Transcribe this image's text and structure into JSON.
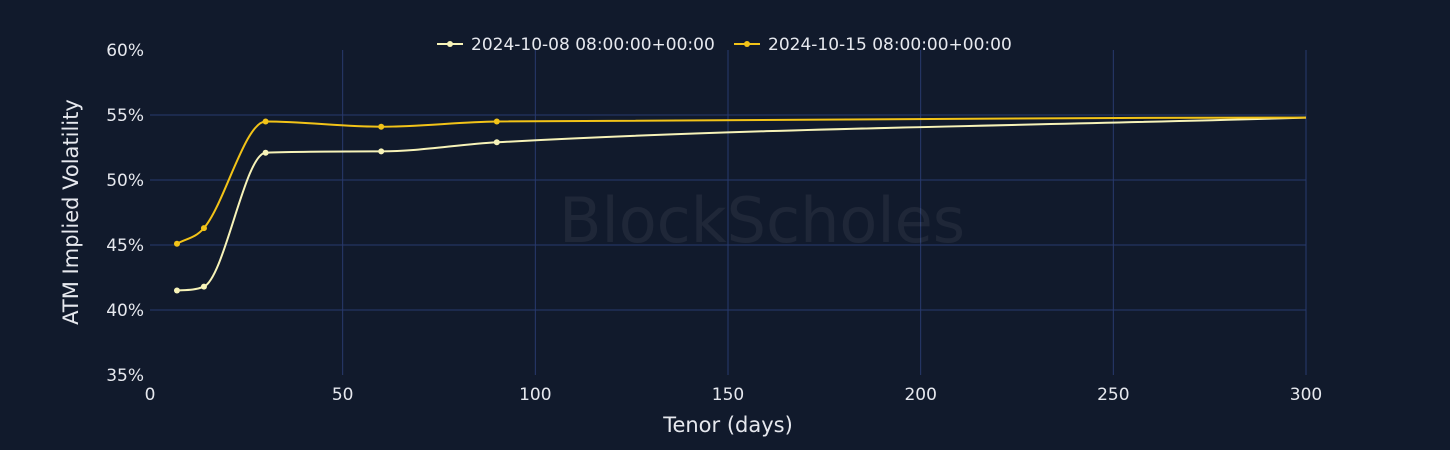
{
  "chart_data": {
    "type": "line",
    "title": "",
    "xlabel": "Tenor (days)",
    "ylabel": "ATM Implied Volatility",
    "xlim": [
      0,
      300
    ],
    "ylim": [
      35,
      60
    ],
    "x_ticks": [
      0,
      50,
      100,
      150,
      200,
      250,
      300
    ],
    "y_ticks": [
      35,
      40,
      45,
      50,
      55,
      60
    ],
    "y_tick_suffix": "%",
    "grid": true,
    "legend_position": "top-center",
    "watermark": "BlockScholes",
    "series": [
      {
        "name": "2024-10-08 08:00:00+00:00",
        "color": "#f7f3b8",
        "x": [
          7,
          14,
          30,
          60,
          90,
          300
        ],
        "y": [
          41.5,
          41.8,
          52.1,
          52.2,
          52.9,
          54.8
        ],
        "markers_shown": [
          true,
          true,
          true,
          true,
          true,
          false
        ]
      },
      {
        "name": "2024-10-15 08:00:00+00:00",
        "color": "#f2c318",
        "x": [
          7,
          14,
          30,
          60,
          90,
          300
        ],
        "y": [
          45.1,
          46.3,
          54.5,
          54.1,
          54.5,
          54.8
        ],
        "markers_shown": [
          true,
          true,
          true,
          true,
          true,
          false
        ]
      }
    ]
  },
  "theme": {
    "background": "#111a2c",
    "grid_color": "#283a6e",
    "text_color": "#e6e8ee"
  }
}
